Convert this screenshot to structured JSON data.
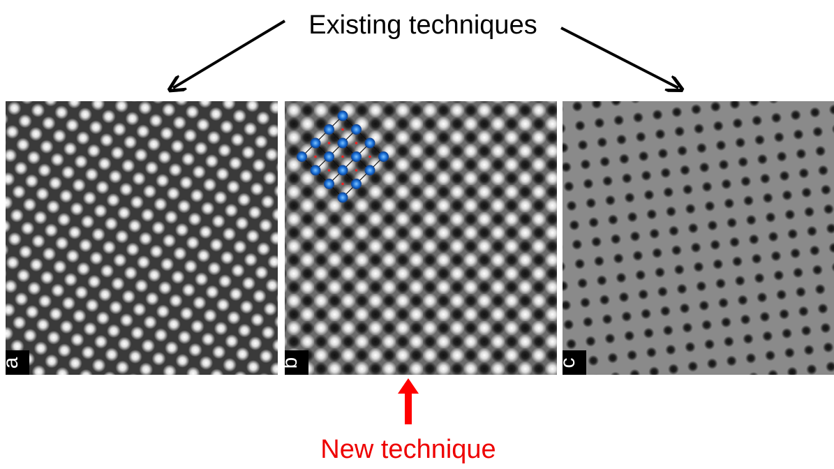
{
  "header": {
    "title": "Existing techniques"
  },
  "panels": [
    {
      "label": "a"
    },
    {
      "label": "b"
    },
    {
      "label": "c"
    }
  ],
  "footer": {
    "caption": "New technique"
  }
}
